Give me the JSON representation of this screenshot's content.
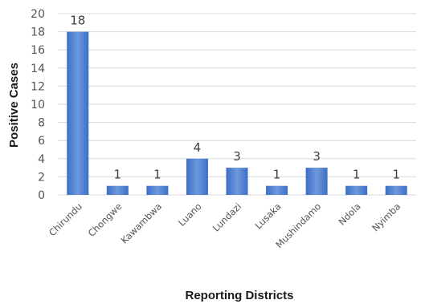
{
  "chart_data": {
    "type": "bar",
    "categories": [
      "Chirundu",
      "Chongwe",
      "Kawambwa",
      "Luano",
      "Lundazi",
      "Lusaka",
      "Mushindamo",
      "Ndola",
      "Nyimba"
    ],
    "values": [
      18,
      1,
      1,
      4,
      3,
      1,
      3,
      1,
      1
    ],
    "data_labels": [
      "18",
      "1",
      "1",
      "4",
      "3",
      "1",
      "3",
      "1",
      "1"
    ],
    "title": "",
    "xlabel": "Reporting Districts",
    "ylabel": "Positive Cases",
    "ylim": [
      0,
      20
    ],
    "yticks": [
      0,
      2,
      4,
      6,
      8,
      10,
      12,
      14,
      16,
      18,
      20
    ],
    "grid": true,
    "legend": "none",
    "bar_color": "#3c6fc8",
    "bar_color_light": "#6e98dc"
  }
}
